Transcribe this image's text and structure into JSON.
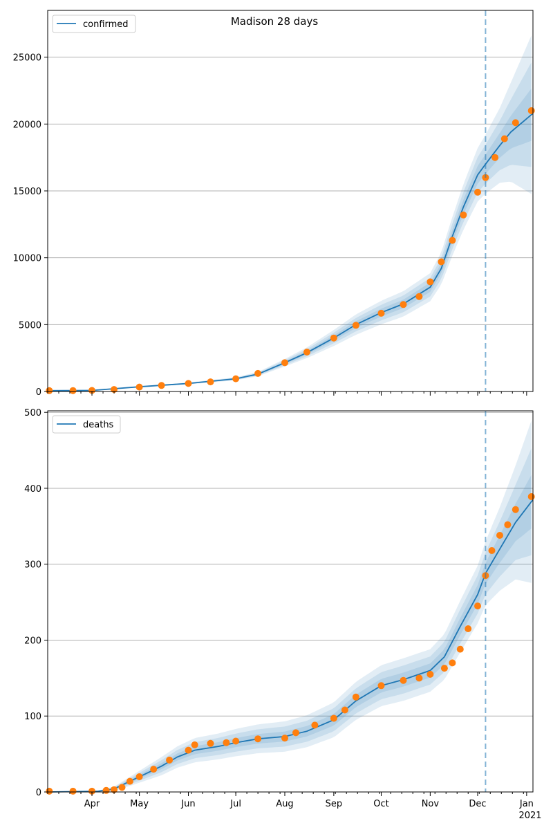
{
  "chart_data": {
    "title": "Madison 28 days",
    "shared_x": {
      "start": "2020-03-04",
      "end": "2021-01-05",
      "tick_labels": [
        "Apr",
        "May",
        "Jun",
        "Jul",
        "Aug",
        "Sep",
        "Oct",
        "Nov",
        "Dec",
        "Jan"
      ],
      "tick_dates": [
        "2020-04-01",
        "2020-05-01",
        "2020-06-01",
        "2020-07-01",
        "2020-08-01",
        "2020-09-01",
        "2020-10-01",
        "2020-11-01",
        "2020-12-01",
        "2021-01-01"
      ],
      "year_label": "2021",
      "minor_ticks": "weekly"
    },
    "forecast_date": "2020-12-06",
    "colors": {
      "model": "#1f77b4",
      "observed": "#ff7f0e",
      "band": "#1f77b4",
      "grid": "#b0b0b0"
    },
    "panels": [
      {
        "type": "line",
        "legend_label": "confirmed",
        "legend_position": "top-left",
        "ylim": [
          0,
          28500
        ],
        "yticks": [
          0,
          5000,
          10000,
          15000,
          20000,
          25000
        ],
        "grid": "horizontal",
        "model": {
          "x": [
            "2020-03-04",
            "2020-04-01",
            "2020-05-01",
            "2020-06-01",
            "2020-07-01",
            "2020-07-15",
            "2020-08-01",
            "2020-08-15",
            "2020-09-01",
            "2020-09-15",
            "2020-10-01",
            "2020-10-15",
            "2020-11-01",
            "2020-11-08",
            "2020-11-15",
            "2020-11-22",
            "2020-12-01",
            "2020-12-06",
            "2020-12-15",
            "2020-12-22",
            "2021-01-05"
          ],
          "y": [
            60,
            80,
            350,
            600,
            950,
            1300,
            2150,
            2900,
            4000,
            5000,
            5900,
            6550,
            7800,
            9200,
            11600,
            13800,
            16200,
            17000,
            18400,
            19400,
            20800
          ],
          "band_spread": [
            0,
            10,
            40,
            70,
            110,
            160,
            280,
            400,
            600,
            760,
            880,
            950,
            1050,
            1200,
            1450,
            1700,
            2000,
            2200,
            2800,
            3700,
            6100
          ]
        },
        "observed": {
          "x": [
            "2020-03-05",
            "2020-03-20",
            "2020-04-01",
            "2020-04-15",
            "2020-05-01",
            "2020-05-15",
            "2020-06-01",
            "2020-06-15",
            "2020-07-01",
            "2020-07-15",
            "2020-08-01",
            "2020-08-15",
            "2020-09-01",
            "2020-09-15",
            "2020-10-01",
            "2020-10-15",
            "2020-10-25",
            "2020-11-01",
            "2020-11-08",
            "2020-11-15",
            "2020-11-22",
            "2020-12-01",
            "2020-12-06",
            "2020-12-12",
            "2020-12-18",
            "2020-12-25",
            "2021-01-04"
          ],
          "y": [
            60,
            65,
            80,
            150,
            330,
            450,
            600,
            720,
            950,
            1350,
            2150,
            2950,
            4000,
            4950,
            5850,
            6500,
            7100,
            8200,
            9700,
            11300,
            13200,
            14900,
            16000,
            17500,
            18900,
            20100,
            21000
          ]
        }
      },
      {
        "type": "line",
        "legend_label": "deaths",
        "legend_position": "top-left",
        "ylim": [
          0,
          502
        ],
        "yticks": [
          0,
          100,
          200,
          300,
          400,
          500
        ],
        "grid": "horizontal",
        "model": {
          "x": [
            "2020-03-04",
            "2020-04-05",
            "2020-04-15",
            "2020-04-25",
            "2020-05-05",
            "2020-05-15",
            "2020-05-25",
            "2020-06-05",
            "2020-06-20",
            "2020-07-01",
            "2020-07-15",
            "2020-08-01",
            "2020-08-15",
            "2020-09-01",
            "2020-09-15",
            "2020-10-01",
            "2020-10-15",
            "2020-11-01",
            "2020-11-10",
            "2020-11-20",
            "2020-12-01",
            "2020-12-06",
            "2020-12-15",
            "2020-12-25",
            "2021-01-05"
          ],
          "y": [
            0,
            1,
            4,
            14,
            24,
            34,
            46,
            55,
            60,
            65,
            70,
            73,
            80,
            95,
            120,
            140,
            148,
            160,
            178,
            218,
            260,
            288,
            320,
            355,
            385
          ],
          "band_spread": [
            0,
            1,
            3,
            6,
            9,
            12,
            14,
            16,
            17,
            18,
            19,
            20,
            21,
            23,
            25,
            27,
            28,
            28,
            30,
            34,
            38,
            42,
            55,
            75,
            110
          ]
        },
        "observed": {
          "x": [
            "2020-03-05",
            "2020-03-20",
            "2020-04-01",
            "2020-04-10",
            "2020-04-15",
            "2020-04-20",
            "2020-04-25",
            "2020-05-01",
            "2020-05-10",
            "2020-05-20",
            "2020-06-01",
            "2020-06-05",
            "2020-06-15",
            "2020-06-25",
            "2020-07-01",
            "2020-07-15",
            "2020-08-01",
            "2020-08-08",
            "2020-08-20",
            "2020-09-01",
            "2020-09-08",
            "2020-09-15",
            "2020-10-01",
            "2020-10-15",
            "2020-10-25",
            "2020-11-01",
            "2020-11-10",
            "2020-11-15",
            "2020-11-20",
            "2020-11-25",
            "2020-12-01",
            "2020-12-06",
            "2020-12-10",
            "2020-12-15",
            "2020-12-20",
            "2020-12-25",
            "2021-01-04"
          ],
          "y": [
            1,
            1,
            1,
            2,
            3,
            6,
            14,
            20,
            30,
            42,
            55,
            62,
            64,
            65,
            67,
            70,
            71,
            78,
            88,
            97,
            108,
            125,
            140,
            147,
            150,
            155,
            163,
            170,
            188,
            215,
            245,
            285,
            318,
            338,
            352,
            372,
            389
          ]
        }
      }
    ]
  }
}
